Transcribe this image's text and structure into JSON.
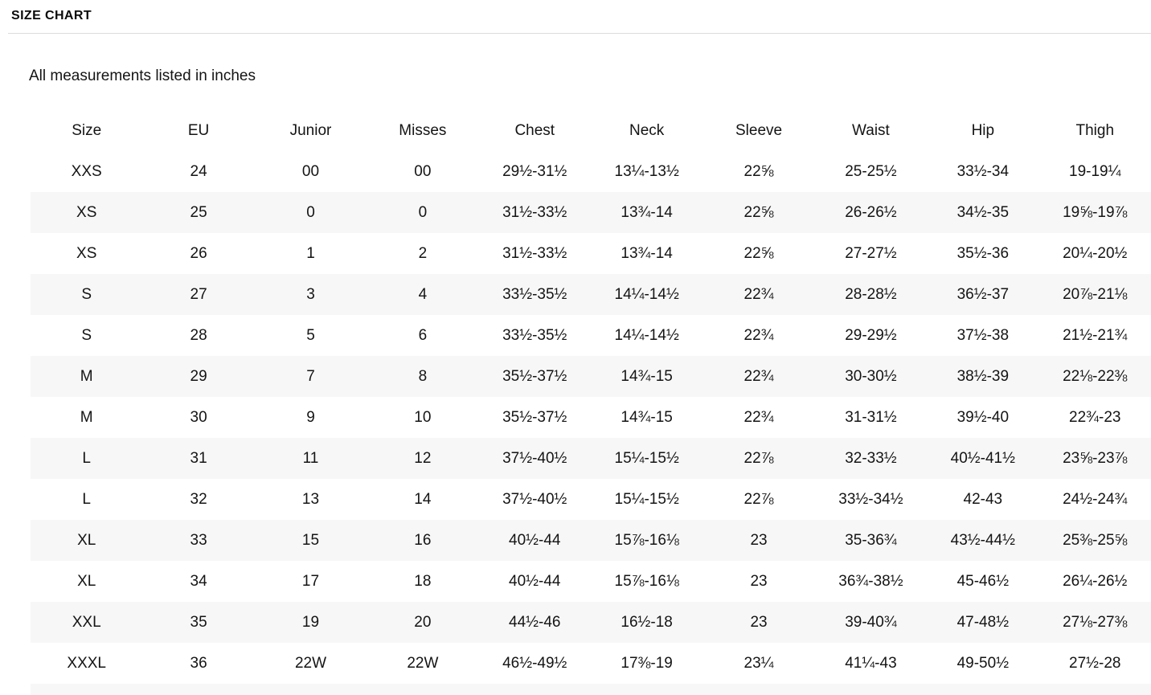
{
  "page": {
    "title": "SIZE CHART",
    "subtitle": "All measurements listed in inches"
  },
  "table": {
    "columns": [
      "Size",
      "EU",
      "Junior",
      "Misses",
      "Chest",
      "Neck",
      "Sleeve",
      "Waist",
      "Hip",
      "Thigh"
    ],
    "rows": [
      [
        "XXS",
        "24",
        "00",
        "00",
        "29½-31½",
        "13¼-13½",
        "22⅝",
        "25-25½",
        "33½-34",
        "19-19¼"
      ],
      [
        "XS",
        "25",
        "0",
        "0",
        "31½-33½",
        "13¾-14",
        "22⅝",
        "26-26½",
        "34½-35",
        "19⅝-19⅞"
      ],
      [
        "XS",
        "26",
        "1",
        "2",
        "31½-33½",
        "13¾-14",
        "22⅝",
        "27-27½",
        "35½-36",
        "20¼-20½"
      ],
      [
        "S",
        "27",
        "3",
        "4",
        "33½-35½",
        "14¼-14½",
        "22¾",
        "28-28½",
        "36½-37",
        "20⅞-21⅛"
      ],
      [
        "S",
        "28",
        "5",
        "6",
        "33½-35½",
        "14¼-14½",
        "22¾",
        "29-29½",
        "37½-38",
        "21½-21¾"
      ],
      [
        "M",
        "29",
        "7",
        "8",
        "35½-37½",
        "14¾-15",
        "22¾",
        "30-30½",
        "38½-39",
        "22⅛-22⅜"
      ],
      [
        "M",
        "30",
        "9",
        "10",
        "35½-37½",
        "14¾-15",
        "22¾",
        "31-31½",
        "39½-40",
        "22¾-23"
      ],
      [
        "L",
        "31",
        "11",
        "12",
        "37½-40½",
        "15¼-15½",
        "22⅞",
        "32-33½",
        "40½-41½",
        "23⅝-23⅞"
      ],
      [
        "L",
        "32",
        "13",
        "14",
        "37½-40½",
        "15¼-15½",
        "22⅞",
        "33½-34½",
        "42-43",
        "24½-24¾"
      ],
      [
        "XL",
        "33",
        "15",
        "16",
        "40½-44",
        "15⅞-16⅛",
        "23",
        "35-36¾",
        "43½-44½",
        "25⅜-25⅝"
      ],
      [
        "XL",
        "34",
        "17",
        "18",
        "40½-44",
        "15⅞-16⅛",
        "23",
        "36¾-38½",
        "45-46½",
        "26¼-26½"
      ],
      [
        "XXL",
        "35",
        "19",
        "20",
        "44½-46",
        "16½-18",
        "23",
        "39-40¾",
        "47-48½",
        "27⅛-27⅜"
      ],
      [
        "XXXL",
        "36",
        "22W",
        "22W",
        "46½-49½",
        "17⅜-19",
        "23¼",
        "41¼-43",
        "49-50½",
        "27½-28"
      ]
    ]
  },
  "colors": {
    "row_stripe": "#f7f7f7",
    "divider": "#dcdcdc",
    "text": "#141414"
  }
}
